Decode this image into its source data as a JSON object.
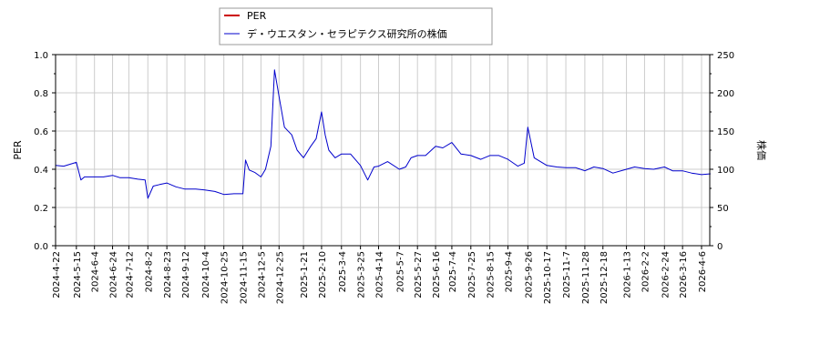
{
  "chart_data": {
    "type": "line",
    "xlabel": "",
    "ylabel_left": "PER",
    "ylabel_right": "株価",
    "ylim_left": [
      0.0,
      1.0
    ],
    "ylim_right": [
      0,
      250
    ],
    "yticks_left": [
      "0.0",
      "0.2",
      "0.4",
      "0.6",
      "0.8",
      "1.0"
    ],
    "yticks_right": [
      "0",
      "50",
      "100",
      "150",
      "200",
      "250"
    ],
    "grid": true,
    "legend_position": "top-center",
    "x_tick_labels": [
      "2024-4-22",
      "2024-5-15",
      "2024-6-4",
      "2024-6-24",
      "2024-7-12",
      "2024-8-2",
      "2024-8-23",
      "2024-9-12",
      "2024-10-4",
      "2024-10-25",
      "2024-11-15",
      "2024-12-5",
      "2024-12-25",
      "2025-1-21",
      "2025-2-10",
      "2025-3-4",
      "2025-3-25",
      "2025-4-14",
      "2025-5-7",
      "2025-5-27",
      "2025-6-16",
      "2025-7-4",
      "2025-7-25",
      "2025-8-15",
      "2025-9-4",
      "2025-9-26",
      "2025-10-17",
      "2025-11-7",
      "2025-11-28",
      "2025-12-18",
      "2026-1-13",
      "2026-2-2",
      "2026-2-24",
      "2026-3-16",
      "2026-4-6"
    ],
    "series": [
      {
        "name": "PER",
        "color": "#cc0000",
        "axis": "left",
        "values": []
      },
      {
        "name": "デ・ウエスタン・セラピテクス研究所の株価",
        "color": "#0000cc",
        "axis": "right",
        "x": [
          "2024-4-22",
          "2024-5-1",
          "2024-5-15",
          "2024-5-20",
          "2024-5-24",
          "2024-6-4",
          "2024-6-14",
          "2024-6-24",
          "2024-7-2",
          "2024-7-12",
          "2024-7-22",
          "2024-7-30",
          "2024-8-2",
          "2024-8-8",
          "2024-8-15",
          "2024-8-23",
          "2024-9-2",
          "2024-9-12",
          "2024-9-24",
          "2024-10-4",
          "2024-10-15",
          "2024-10-25",
          "2024-11-5",
          "2024-11-15",
          "2024-11-18",
          "2024-11-22",
          "2024-11-28",
          "2024-12-5",
          "2024-12-10",
          "2024-12-16",
          "2024-12-20",
          "2024-12-25",
          "2024-12-31",
          "2025-1-8",
          "2025-1-14",
          "2025-1-21",
          "2025-1-29",
          "2025-2-4",
          "2025-2-10",
          "2025-2-14",
          "2025-2-18",
          "2025-2-25",
          "2025-3-4",
          "2025-3-14",
          "2025-3-25",
          "2025-4-2",
          "2025-4-9",
          "2025-4-14",
          "2025-4-24",
          "2025-5-7",
          "2025-5-14",
          "2025-5-20",
          "2025-5-27",
          "2025-6-5",
          "2025-6-16",
          "2025-6-24",
          "2025-7-4",
          "2025-7-14",
          "2025-7-25",
          "2025-8-5",
          "2025-8-15",
          "2025-8-25",
          "2025-9-4",
          "2025-9-15",
          "2025-9-22",
          "2025-9-26",
          "2025-10-3",
          "2025-10-17",
          "2025-10-28",
          "2025-11-7",
          "2025-11-18",
          "2025-11-28",
          "2025-12-8",
          "2025-12-18",
          "2025-12-29",
          "2026-1-13",
          "2026-1-22",
          "2026-2-2",
          "2026-2-12",
          "2026-2-24",
          "2026-3-5",
          "2026-3-16",
          "2026-3-26",
          "2026-4-6",
          "2026-4-16"
        ],
        "values": [
          105,
          104,
          109,
          86,
          90,
          90,
          90,
          92,
          89,
          89,
          87,
          86,
          62,
          78,
          80,
          82,
          77,
          74,
          74,
          73,
          71,
          67,
          68,
          68,
          112,
          99,
          96,
          90,
          100,
          130,
          230,
          195,
          155,
          145,
          125,
          115,
          130,
          140,
          175,
          145,
          125,
          115,
          120,
          120,
          105,
          86,
          103,
          104,
          110,
          100,
          103,
          115,
          118,
          118,
          130,
          128,
          135,
          120,
          118,
          113,
          118,
          118,
          113,
          104,
          108,
          155,
          115,
          105,
          103,
          102,
          102,
          98,
          103,
          101,
          95,
          100,
          103,
          101,
          100,
          103,
          98,
          98,
          95,
          93,
          94
        ]
      }
    ]
  }
}
